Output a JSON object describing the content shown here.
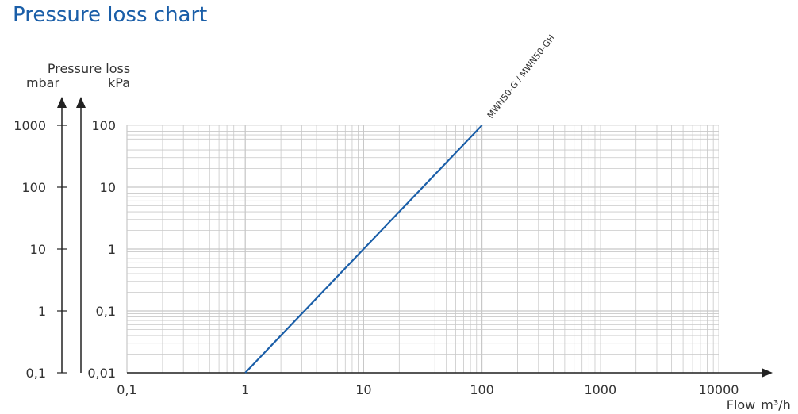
{
  "page_title": "Pressure loss chart",
  "chart_data": {
    "type": "line",
    "title": "Pressure loss chart",
    "xlabel": "Flow",
    "x_unit": "m³/h",
    "ylabel": "Pressure loss",
    "y_units": {
      "left": "mbar",
      "right": "kPa"
    },
    "x_scale": "log",
    "y_scale": "log",
    "xlim": [
      0.1,
      10000
    ],
    "ylim_kpa": [
      0.01,
      100
    ],
    "x_ticks": [
      "0,1",
      "1",
      "10",
      "100",
      "1000",
      "10000"
    ],
    "y_ticks_mbar": [
      "0,1",
      "1",
      "10",
      "100",
      "1000"
    ],
    "y_ticks_kpa": [
      "0,01",
      "0,1",
      "1",
      "10",
      "100"
    ],
    "grid": true,
    "series": [
      {
        "name": "MWN50-G / MWN50-GH",
        "color": "#1a5ea8",
        "points": [
          {
            "x": 1,
            "y": 0.01
          },
          {
            "x": 100,
            "y": 100
          }
        ]
      }
    ]
  }
}
